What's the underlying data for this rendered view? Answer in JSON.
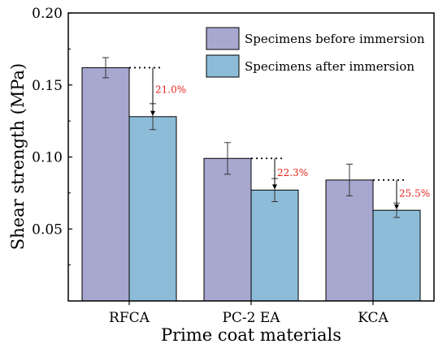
{
  "chart_data": {
    "type": "bar",
    "title": "",
    "xlabel": "Prime coat materials",
    "ylabel": "Shear strength (MPa)",
    "ylim": [
      0.0,
      0.2
    ],
    "yticks": [
      "0.05",
      "0.10",
      "0.15",
      "0.20"
    ],
    "ytick_values": [
      0.05,
      0.1,
      0.15,
      0.2
    ],
    "categories": [
      "RFCA",
      "PC-2 EA",
      "KCA"
    ],
    "series": [
      {
        "name": "Specimens before immersion",
        "color": "#a7a7d0",
        "values": [
          0.162,
          0.099,
          0.084
        ],
        "errors": [
          0.007,
          0.011,
          0.011
        ]
      },
      {
        "name": "Specimens after immersion",
        "color": "#8dbcd8",
        "values": [
          0.128,
          0.077,
          0.063
        ],
        "errors": [
          0.009,
          0.008,
          0.005
        ]
      }
    ],
    "annotations": [
      "21.0%",
      "22.3%",
      "25.5%"
    ],
    "annotation_color": "#e8221c",
    "legend_position": "top-right",
    "grid": false
  }
}
